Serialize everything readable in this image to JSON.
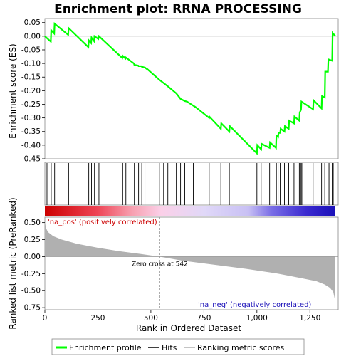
{
  "chart_data": {
    "type": "line",
    "title": "Enrichment plot: RRNA PROCESSING",
    "top_panel": {
      "ylabel": "Enrichment score (ES)",
      "ylim": [
        -0.45,
        0.065
      ],
      "yticks": [
        "0.05",
        "0.00",
        "-0.05",
        "-0.10",
        "-0.15",
        "-0.20",
        "-0.25",
        "-0.30",
        "-0.35",
        "-0.40",
        "-0.45"
      ],
      "ytick_values": [
        0.05,
        0.0,
        -0.05,
        -0.1,
        -0.15,
        -0.2,
        -0.25,
        -0.3,
        -0.35,
        -0.4,
        -0.45
      ],
      "series": [
        {
          "name": "Enrichment profile",
          "color": "#00ff00",
          "x": [
            0,
            28,
            30,
            44,
            46,
            110,
            112,
            205,
            207,
            218,
            220,
            232,
            234,
            252,
            255,
            365,
            367,
            380,
            382,
            420,
            422,
            440,
            442,
            455,
            457,
            470,
            472,
            480,
            482,
            540,
            560,
            580,
            620,
            640,
            660,
            670,
            680,
            690,
            700,
            710,
            775,
            777,
            830,
            832,
            870,
            872,
            1000,
            1002,
            1020,
            1022,
            1060,
            1062,
            1090,
            1092,
            1100,
            1102,
            1110,
            1112,
            1130,
            1132,
            1150,
            1152,
            1175,
            1177,
            1200,
            1202,
            1208,
            1210,
            1265,
            1267,
            1305,
            1307,
            1320,
            1322,
            1335,
            1337,
            1355,
            1357,
            1370
          ],
          "y": [
            0.0,
            -0.02,
            0.022,
            0.01,
            0.046,
            0.005,
            0.03,
            -0.04,
            -0.015,
            -0.025,
            -0.005,
            -0.018,
            0.0,
            -0.01,
            0.0,
            -0.08,
            -0.072,
            -0.082,
            -0.078,
            -0.1,
            -0.105,
            -0.108,
            -0.11,
            -0.11,
            -0.112,
            -0.115,
            -0.115,
            -0.12,
            -0.12,
            -0.16,
            -0.172,
            -0.184,
            -0.21,
            -0.23,
            -0.238,
            -0.24,
            -0.245,
            -0.25,
            -0.255,
            -0.26,
            -0.3,
            -0.296,
            -0.34,
            -0.32,
            -0.35,
            -0.33,
            -0.43,
            -0.4,
            -0.415,
            -0.395,
            -0.41,
            -0.39,
            -0.41,
            -0.365,
            -0.37,
            -0.355,
            -0.355,
            -0.34,
            -0.35,
            -0.33,
            -0.34,
            -0.31,
            -0.32,
            -0.295,
            -0.31,
            -0.28,
            -0.27,
            -0.24,
            -0.268,
            -0.235,
            -0.265,
            -0.22,
            -0.225,
            -0.13,
            -0.13,
            -0.085,
            -0.09,
            0.012,
            0.0
          ]
        }
      ]
    },
    "hits": {
      "name": "Hits",
      "color": "#000000",
      "x": [
        5,
        10,
        30,
        46,
        112,
        207,
        220,
        234,
        255,
        367,
        382,
        422,
        442,
        457,
        472,
        482,
        540,
        560,
        580,
        620,
        640,
        660,
        670,
        680,
        700,
        775,
        830,
        870,
        1000,
        1020,
        1060,
        1090,
        1092,
        1100,
        1110,
        1130,
        1150,
        1175,
        1200,
        1208,
        1212,
        1265,
        1305,
        1320,
        1335,
        1340,
        1355,
        1360
      ]
    },
    "bottom_panel": {
      "ylabel": "Ranked list metric (PreRanked)",
      "xlabel": "Rank in Dataset",
      "ylim": [
        -0.78,
        0.58
      ],
      "yticks": [
        "0.50",
        "0.25",
        "0.00",
        "-0.25",
        "-0.50",
        "-0.75"
      ],
      "ytick_values": [
        0.5,
        0.25,
        0.0,
        -0.25,
        -0.5,
        -0.75
      ],
      "xlim": [
        0,
        1370
      ],
      "xticks": [
        "0",
        "250",
        "500",
        "750",
        "1,000",
        "1,250"
      ],
      "xtick_values": [
        0,
        250,
        500,
        750,
        1000,
        1250
      ],
      "fill_color": "#b0b0b0",
      "metric_x": [
        0,
        5,
        15,
        40,
        80,
        150,
        250,
        350,
        450,
        542,
        650,
        800,
        950,
        1100,
        1200,
        1280,
        1320,
        1345,
        1360,
        1367,
        1370
      ],
      "metric_y": [
        0.52,
        0.42,
        0.36,
        0.3,
        0.25,
        0.19,
        0.13,
        0.08,
        0.04,
        0.0,
        -0.06,
        -0.12,
        -0.18,
        -0.25,
        -0.31,
        -0.36,
        -0.41,
        -0.46,
        -0.52,
        -0.62,
        -0.74
      ],
      "zero_cross_label": "Zero cross at 542",
      "zero_cross": 542,
      "pos_label": "'na_pos' (positively correlated)",
      "neg_label": "'na_neg' (negatively correlated)"
    },
    "legend": {
      "position": "bottom",
      "items": [
        {
          "label": "Enrichment profile",
          "color": "#00ff00",
          "kind": "line"
        },
        {
          "label": "Hits",
          "color": "#000000",
          "kind": "line"
        },
        {
          "label": "Ranking metric scores",
          "color": "#b0b0b0",
          "kind": "line"
        }
      ]
    },
    "xlabel": "Rank in Ordered Dataset"
  }
}
